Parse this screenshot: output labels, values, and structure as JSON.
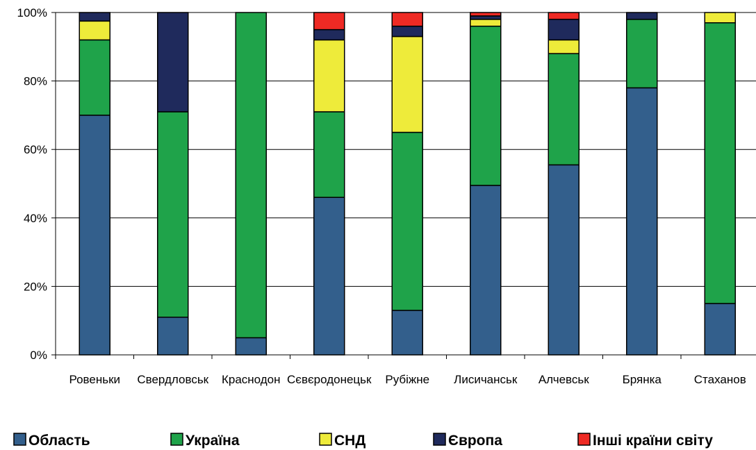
{
  "chart_data": {
    "type": "bar",
    "stacked": true,
    "percent": true,
    "categories": [
      "Ровеньки",
      "Свердловськ",
      "Краснодон",
      "Сєвєродонецьк",
      "Рубіжне",
      "Лисичанськ",
      "Алчевськ",
      "Брянка",
      "Стаханов"
    ],
    "series": [
      {
        "name": "Область",
        "color": "#335f8c",
        "values": [
          70,
          11,
          5,
          46,
          13,
          49.5,
          55.5,
          78,
          15
        ]
      },
      {
        "name": "Україна",
        "color": "#1fa34a",
        "values": [
          22,
          60,
          95,
          25,
          52,
          46.5,
          32.5,
          20,
          82
        ]
      },
      {
        "name": "СНД",
        "color": "#eeeb3a",
        "values": [
          5.5,
          0,
          0,
          21,
          28,
          2,
          4,
          0,
          3
        ]
      },
      {
        "name": "Європа",
        "color": "#1f2a5c",
        "values": [
          2.5,
          29,
          0,
          3,
          3,
          1,
          6,
          2,
          0
        ]
      },
      {
        "name": "Інші країни світу",
        "color": "#ee2a24",
        "values": [
          0,
          0,
          0,
          5,
          4,
          1,
          2,
          0,
          0
        ]
      }
    ],
    "ylim": [
      0,
      100
    ],
    "yticks": [
      "0%",
      "20%",
      "40%",
      "60%",
      "80%",
      "100%"
    ],
    "grid": true,
    "legend_position": "bottom",
    "title": "",
    "xlabel": "",
    "ylabel": ""
  }
}
